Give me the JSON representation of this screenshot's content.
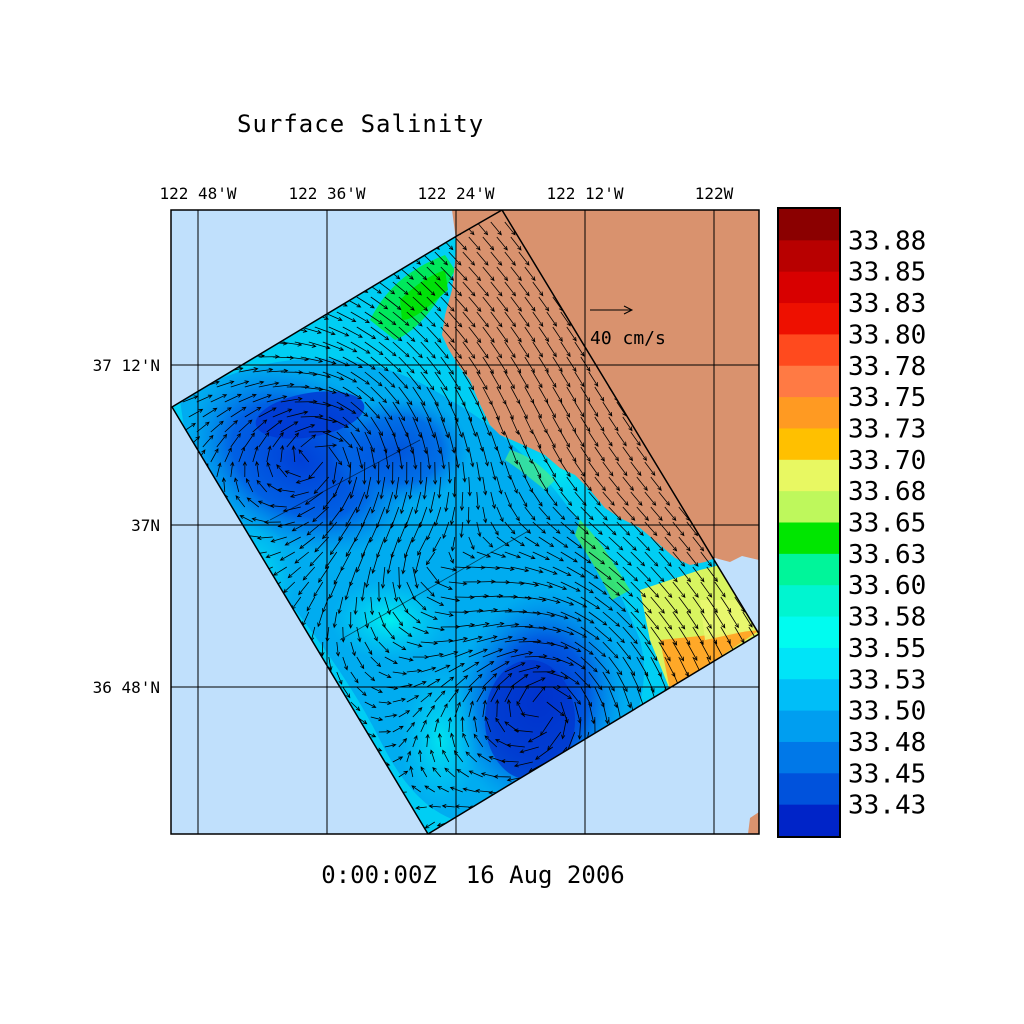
{
  "title": "Surface Salinity",
  "timestamp": "0:00:00Z  16 Aug 2006",
  "lon_ticks": [
    "122 48'W",
    "122 36'W",
    "122 24'W",
    "122 12'W",
    "122W"
  ],
  "lat_ticks": [
    "37 12'N",
    "37N",
    "36 48'N"
  ],
  "reference_vector": {
    "label": "40 cm/s"
  },
  "colorbar": {
    "labels": [
      "33.88",
      "33.85",
      "33.83",
      "33.80",
      "33.78",
      "33.75",
      "33.73",
      "33.70",
      "33.68",
      "33.65",
      "33.63",
      "33.60",
      "33.58",
      "33.55",
      "33.53",
      "33.50",
      "33.48",
      "33.45",
      "33.43"
    ],
    "colors": [
      "#8b0000",
      "#b80000",
      "#d80000",
      "#ee1000",
      "#ff4a1e",
      "#ff7a44",
      "#ff9a22",
      "#ffc000",
      "#e8f862",
      "#bef85c",
      "#00e600",
      "#00f59a",
      "#00f5d0",
      "#00fcf0",
      "#00e4f8",
      "#00bef8",
      "#009ef0",
      "#0078e8",
      "#0052dc",
      "#0024c8"
    ]
  },
  "colors": {
    "ocean_background": "#c0e0fc",
    "land": "#d9926e",
    "grid": "#000000"
  }
}
